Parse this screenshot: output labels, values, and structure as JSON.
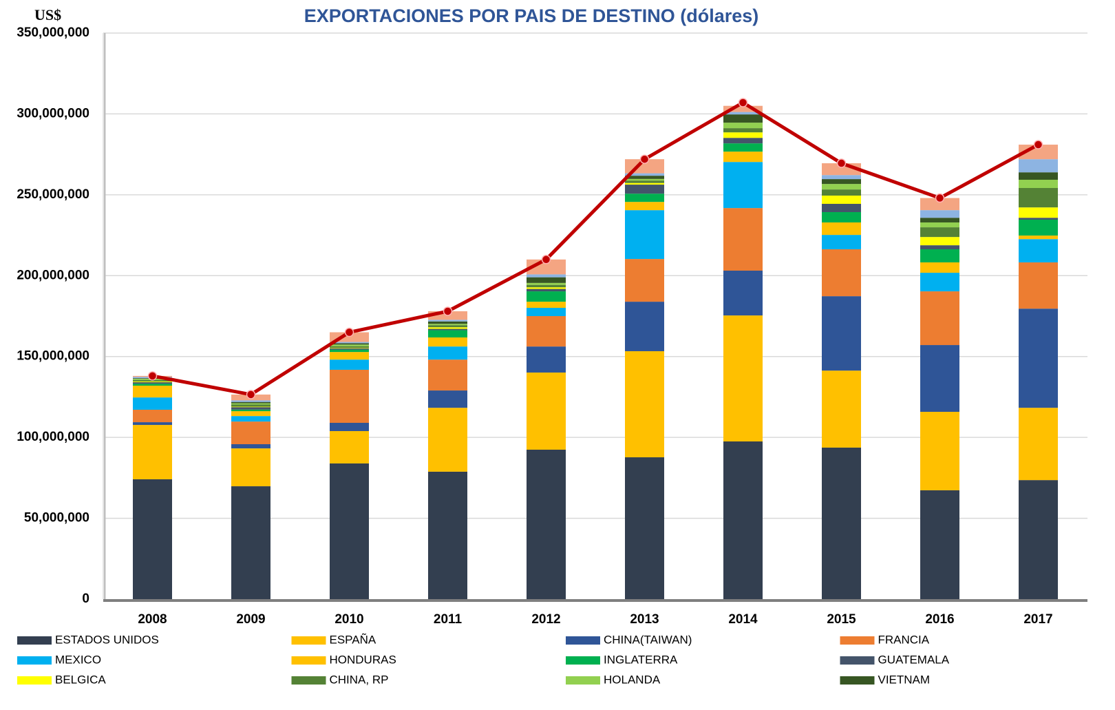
{
  "chart_data": {
    "type": "stacked_bar_line",
    "title": "EXPORTACIONES POR PAIS DE DESTINO (dólares)",
    "y_label": "US$",
    "categories": [
      "2008",
      "2009",
      "2010",
      "2011",
      "2012",
      "2013",
      "2014",
      "2015",
      "2016",
      "2017"
    ],
    "ylim": [
      0,
      350000000
    ],
    "yticks": [
      0,
      {
        "value": 50000000,
        "label": "50,000,000"
      },
      {
        "value": 100000000,
        "label": "100,000,000"
      },
      {
        "value": 150000000,
        "label": "150,000,000"
      },
      {
        "value": 200000000,
        "label": "200,000,000"
      },
      {
        "value": 250000000,
        "label": "250,000,000"
      },
      {
        "value": 300000000,
        "label": "300,000,000"
      },
      {
        "value": 350000000,
        "label": "350,000,000"
      }
    ],
    "grid": true,
    "legend": "bottom",
    "series": [
      {
        "name": "ESTADOS UNIDOS",
        "color": "#333f50",
        "values": [
          74100000,
          69800000,
          83900000,
          78800000,
          92400000,
          87700000,
          97500000,
          93700000,
          67300000,
          73600000
        ]
      },
      {
        "name": "ESPAÑA",
        "color": "#ffc000",
        "values": [
          33600000,
          23400000,
          20000000,
          39500000,
          47700000,
          65600000,
          77900000,
          47600000,
          48500000,
          44700000
        ]
      },
      {
        "name": "CHINA(TAIWAN)",
        "color": "#2f5597",
        "values": [
          1700000,
          2600000,
          5100000,
          10700000,
          16100000,
          30600000,
          27700000,
          46000000,
          41300000,
          61300000
        ]
      },
      {
        "name": "FRANCIA",
        "color": "#ed7d31",
        "values": [
          7700000,
          14000000,
          32800000,
          19100000,
          18800000,
          26400000,
          38700000,
          29000000,
          33200000,
          28600000
        ]
      },
      {
        "name": "MEXICO",
        "color": "#00b0f0",
        "values": [
          7600000,
          3400000,
          6300000,
          8100000,
          5100000,
          30200000,
          28500000,
          8900000,
          11500000,
          14400000
        ]
      },
      {
        "name": "HONDURAS",
        "color": "#ffc000",
        "values": [
          7300000,
          3000000,
          4700000,
          5600000,
          3800000,
          5100000,
          6400000,
          7700000,
          6400000,
          2200000
        ]
      },
      {
        "name": "INGLATERRA",
        "color": "#00b050",
        "values": [
          1200000,
          1000000,
          1500000,
          4500000,
          6400000,
          5100000,
          5100000,
          6400000,
          8100000,
          9800000
        ]
      },
      {
        "name": "GUATEMALA",
        "color": "#44546a",
        "values": [
          900000,
          1500000,
          800000,
          800000,
          1500000,
          5600000,
          3400000,
          5100000,
          2500000,
          1200000
        ]
      },
      {
        "name": "BELGICA",
        "color": "#ffff00",
        "values": [
          500000,
          300000,
          300000,
          1000000,
          1000000,
          1000000,
          3400000,
          5100000,
          5100000,
          6400000
        ]
      },
      {
        "name": "CHINA, RP",
        "color": "#548235",
        "values": [
          800000,
          1300000,
          1000000,
          1300000,
          1500000,
          1500000,
          2600000,
          3800000,
          6000000,
          12000000
        ]
      },
      {
        "name": "HOLANDA",
        "color": "#92d050",
        "values": [
          800000,
          800000,
          1000000,
          800000,
          1200000,
          1000000,
          3400000,
          3400000,
          3000000,
          5100000
        ]
      },
      {
        "name": "VIETNAM",
        "color": "#375623",
        "values": [
          400000,
          800000,
          800000,
          1500000,
          3500000,
          2000000,
          5100000,
          3000000,
          2900000,
          4600000
        ]
      },
      {
        "color": "#8db4e2",
        "values": [
          800000,
          1000000,
          800000,
          1000000,
          1800000,
          1500000,
          1500000,
          2500000,
          4700000,
          8100000
        ]
      },
      {
        "color": "#f4a582",
        "values": [
          600000,
          3600000,
          6000000,
          5300000,
          9200000,
          8700000,
          3800000,
          7300000,
          7500000,
          9000000
        ]
      }
    ],
    "line": {
      "color": "#c00000",
      "values": [
        138000000,
        126500000,
        165000000,
        178000000,
        210000000,
        272000000,
        307000000,
        269500000,
        248000000,
        281000000
      ]
    }
  }
}
